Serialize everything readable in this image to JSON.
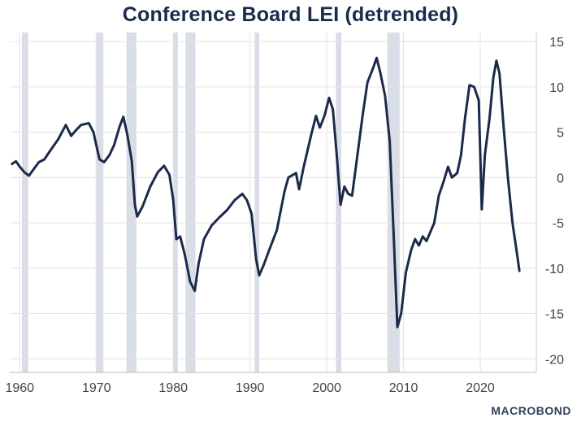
{
  "chart_data": {
    "type": "line",
    "title": "Conference Board LEI (detrended)",
    "xlabel": "",
    "ylabel": "",
    "xlim": [
      1958.7,
      2027.3
    ],
    "ylim": [
      -21.5,
      16
    ],
    "x_ticks": [
      1960,
      1970,
      1980,
      1990,
      2000,
      2010,
      2020
    ],
    "y_ticks": [
      15,
      10,
      5,
      0,
      -5,
      -10,
      -15,
      -20
    ],
    "grid": true,
    "y_axis_side": "right",
    "recessions": [
      [
        1960.3,
        1961.1
      ],
      [
        1969.9,
        1970.9
      ],
      [
        1973.9,
        1975.2
      ],
      [
        1980.0,
        1980.6
      ],
      [
        1981.6,
        1982.9
      ],
      [
        1990.6,
        1991.2
      ],
      [
        2001.2,
        2001.9
      ],
      [
        2007.9,
        2009.5
      ]
    ],
    "series": [
      {
        "color": "#1b2a4a",
        "points": [
          [
            1959.0,
            1.5
          ],
          [
            1959.5,
            1.8
          ],
          [
            1960.0,
            1.2
          ],
          [
            1960.6,
            0.6
          ],
          [
            1961.2,
            0.2
          ],
          [
            1961.8,
            0.9
          ],
          [
            1962.5,
            1.7
          ],
          [
            1963.2,
            2.0
          ],
          [
            1964.0,
            3.0
          ],
          [
            1965.0,
            4.2
          ],
          [
            1966.0,
            5.8
          ],
          [
            1966.7,
            4.6
          ],
          [
            1967.3,
            5.2
          ],
          [
            1968.0,
            5.8
          ],
          [
            1969.0,
            6.0
          ],
          [
            1969.6,
            5.0
          ],
          [
            1970.0,
            3.5
          ],
          [
            1970.4,
            2.0
          ],
          [
            1971.0,
            1.7
          ],
          [
            1971.7,
            2.5
          ],
          [
            1972.3,
            3.6
          ],
          [
            1973.0,
            5.6
          ],
          [
            1973.5,
            6.7
          ],
          [
            1974.0,
            4.8
          ],
          [
            1974.6,
            1.8
          ],
          [
            1975.0,
            -3.0
          ],
          [
            1975.3,
            -4.3
          ],
          [
            1976.0,
            -3.2
          ],
          [
            1977.0,
            -1.0
          ],
          [
            1978.0,
            0.6
          ],
          [
            1978.8,
            1.3
          ],
          [
            1979.5,
            0.3
          ],
          [
            1980.0,
            -2.5
          ],
          [
            1980.4,
            -6.8
          ],
          [
            1980.9,
            -6.5
          ],
          [
            1981.5,
            -8.5
          ],
          [
            1982.2,
            -11.5
          ],
          [
            1982.8,
            -12.5
          ],
          [
            1983.3,
            -9.5
          ],
          [
            1984.0,
            -6.8
          ],
          [
            1985.0,
            -5.3
          ],
          [
            1986.0,
            -4.4
          ],
          [
            1987.0,
            -3.6
          ],
          [
            1988.0,
            -2.5
          ],
          [
            1989.0,
            -1.8
          ],
          [
            1989.6,
            -2.5
          ],
          [
            1990.2,
            -4.0
          ],
          [
            1990.8,
            -9.0
          ],
          [
            1991.2,
            -10.8
          ],
          [
            1991.8,
            -9.6
          ],
          [
            1992.5,
            -8.0
          ],
          [
            1993.5,
            -5.8
          ],
          [
            1994.5,
            -1.5
          ],
          [
            1995.0,
            0.0
          ],
          [
            1996.0,
            0.5
          ],
          [
            1996.4,
            -1.3
          ],
          [
            1997.0,
            1.2
          ],
          [
            1998.0,
            4.8
          ],
          [
            1998.6,
            6.8
          ],
          [
            1999.1,
            5.5
          ],
          [
            1999.7,
            6.8
          ],
          [
            2000.3,
            8.8
          ],
          [
            2000.8,
            7.5
          ],
          [
            2001.3,
            2.5
          ],
          [
            2001.8,
            -3.0
          ],
          [
            2002.3,
            -1.0
          ],
          [
            2002.8,
            -1.8
          ],
          [
            2003.3,
            -2.0
          ],
          [
            2004.0,
            2.5
          ],
          [
            2004.7,
            7.0
          ],
          [
            2005.3,
            10.5
          ],
          [
            2006.0,
            12.0
          ],
          [
            2006.5,
            13.2
          ],
          [
            2007.0,
            11.5
          ],
          [
            2007.6,
            9.0
          ],
          [
            2008.2,
            4.0
          ],
          [
            2008.7,
            -6.0
          ],
          [
            2009.2,
            -16.5
          ],
          [
            2009.7,
            -15.0
          ],
          [
            2010.3,
            -10.5
          ],
          [
            2011.0,
            -8.0
          ],
          [
            2011.5,
            -6.8
          ],
          [
            2012.0,
            -7.5
          ],
          [
            2012.5,
            -6.5
          ],
          [
            2013.0,
            -7.0
          ],
          [
            2014.0,
            -5.0
          ],
          [
            2014.6,
            -2.0
          ],
          [
            2015.2,
            -0.5
          ],
          [
            2015.8,
            1.2
          ],
          [
            2016.3,
            0.0
          ],
          [
            2017.0,
            0.5
          ],
          [
            2017.5,
            2.5
          ],
          [
            2018.0,
            6.5
          ],
          [
            2018.6,
            10.2
          ],
          [
            2019.2,
            10.0
          ],
          [
            2019.8,
            8.5
          ],
          [
            2020.2,
            -3.5
          ],
          [
            2020.6,
            2.5
          ],
          [
            2021.2,
            6.5
          ],
          [
            2021.7,
            11.0
          ],
          [
            2022.1,
            12.9
          ],
          [
            2022.5,
            11.5
          ],
          [
            2023.0,
            6.0
          ],
          [
            2023.6,
            0.0
          ],
          [
            2024.2,
            -5.0
          ],
          [
            2024.8,
            -8.5
          ],
          [
            2025.1,
            -10.3
          ]
        ]
      }
    ],
    "watermark": "MACROBOND"
  }
}
